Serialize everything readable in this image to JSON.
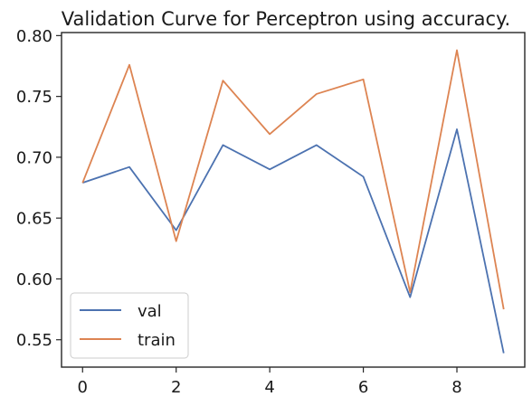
{
  "chart_data": {
    "type": "line",
    "title": "Validation Curve for Perceptron using accuracy.",
    "xlabel": "",
    "ylabel": "",
    "x": [
      0,
      1,
      2,
      3,
      4,
      5,
      6,
      7,
      8,
      9
    ],
    "xlim": [
      -0.45,
      9.45
    ],
    "ylim": [
      0.5275,
      0.8025
    ],
    "xticks": [
      0,
      2,
      4,
      6,
      8
    ],
    "xtick_labels": [
      "0",
      "2",
      "4",
      "6",
      "8"
    ],
    "yticks": [
      0.55,
      0.6,
      0.65,
      0.7,
      0.75,
      0.8
    ],
    "ytick_labels": [
      "0.55",
      "0.60",
      "0.65",
      "0.70",
      "0.75",
      "0.80"
    ],
    "grid": false,
    "legend_position": "lower-left",
    "series": [
      {
        "name": "val",
        "color": "#4c72b0",
        "values": [
          0.679,
          0.692,
          0.64,
          0.71,
          0.69,
          0.71,
          0.684,
          0.585,
          0.723,
          0.539
        ]
      },
      {
        "name": "train",
        "color": "#dd8452",
        "values": [
          0.679,
          0.776,
          0.631,
          0.763,
          0.719,
          0.752,
          0.764,
          0.589,
          0.788,
          0.575
        ]
      }
    ]
  }
}
